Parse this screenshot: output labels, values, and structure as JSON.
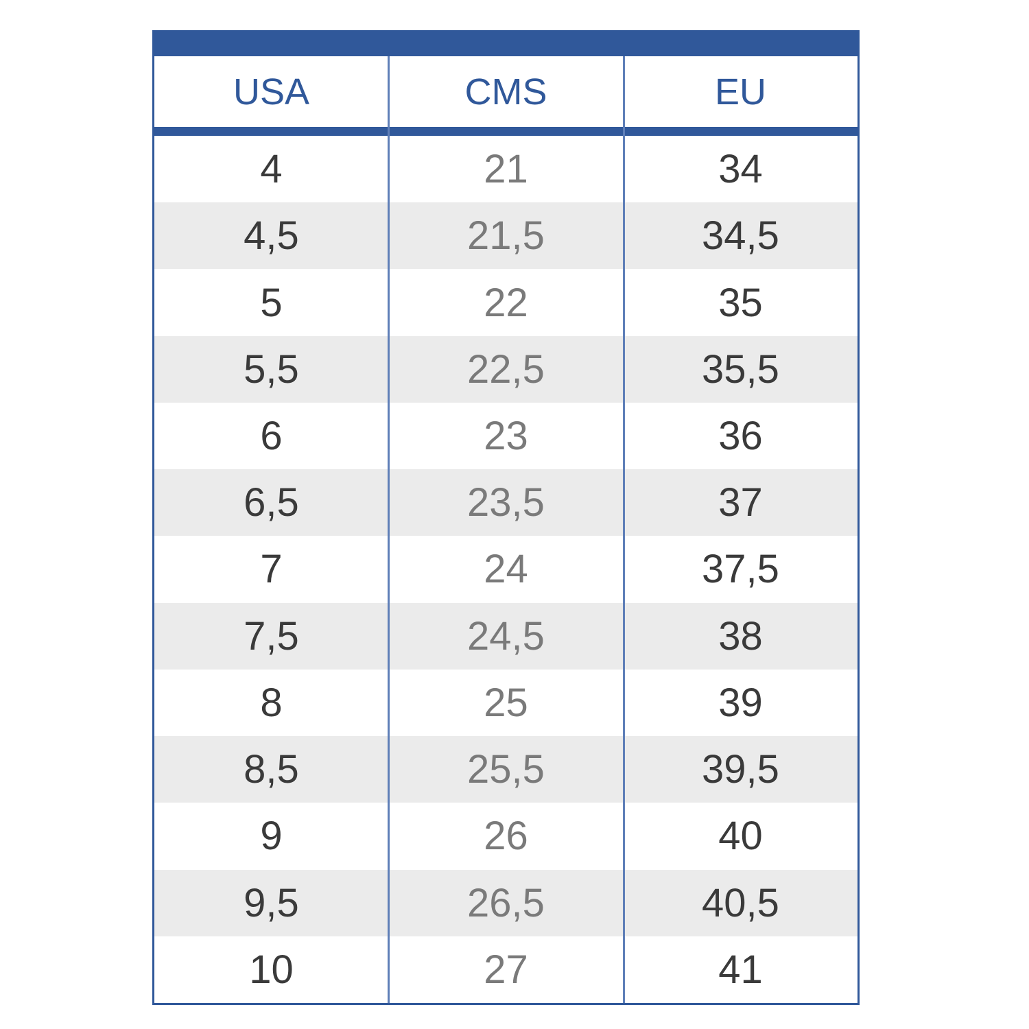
{
  "table": {
    "headers": [
      "USA",
      "CMS",
      "EU"
    ],
    "rows": [
      [
        "4",
        "21",
        "34"
      ],
      [
        "4,5",
        "21,5",
        "34,5"
      ],
      [
        "5",
        "22",
        "35"
      ],
      [
        "5,5",
        "22,5",
        "35,5"
      ],
      [
        "6",
        "23",
        "36"
      ],
      [
        "6,5",
        "23,5",
        "37"
      ],
      [
        "7",
        "24",
        "37,5"
      ],
      [
        "7,5",
        "24,5",
        "38"
      ],
      [
        "8",
        "25",
        "39"
      ],
      [
        "8,5",
        "25,5",
        "39,5"
      ],
      [
        "9",
        "26",
        "40"
      ],
      [
        "9,5",
        "26,5",
        "40,5"
      ],
      [
        "10",
        "27",
        "41"
      ]
    ]
  }
}
